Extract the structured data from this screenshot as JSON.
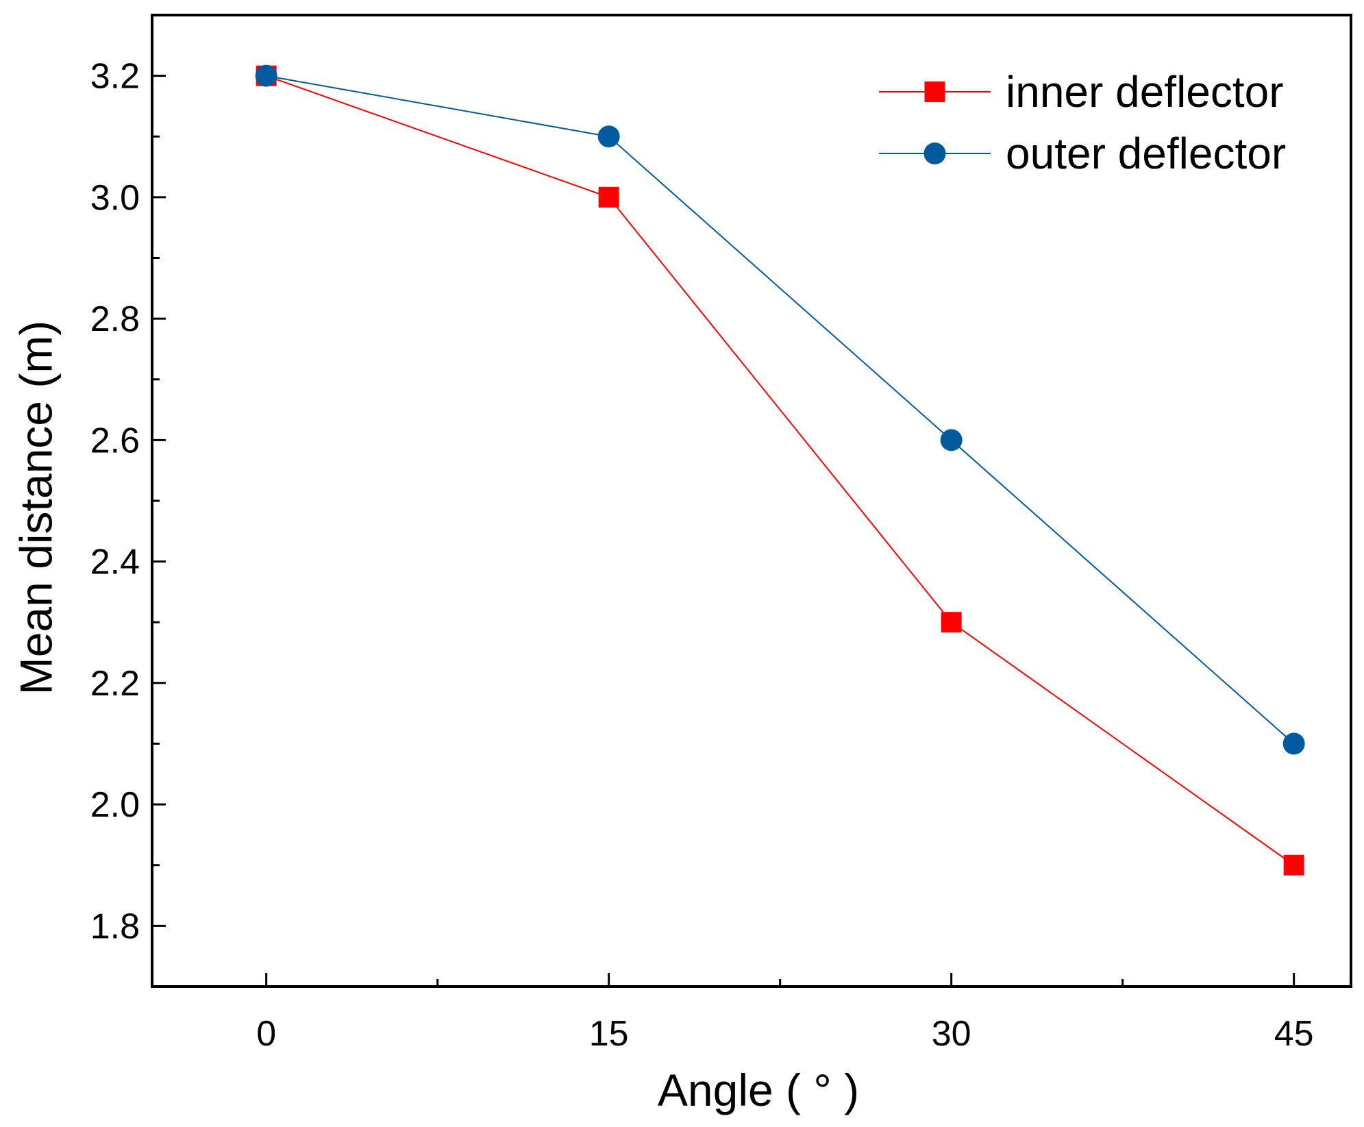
{
  "chart_data": {
    "type": "line",
    "xlabel": "Angle ( ° )",
    "ylabel": "Mean distance (m)",
    "xlim": [
      -5,
      47.5
    ],
    "ylim": [
      1.7,
      3.3
    ],
    "x_ticks": [
      0,
      15,
      30,
      45
    ],
    "x_minor_ticks": [
      7.5,
      22.5,
      37.5
    ],
    "y_ticks": [
      1.8,
      2.0,
      2.2,
      2.4,
      2.6,
      2.8,
      3.0,
      3.2
    ],
    "y_tick_labels": [
      "1.8",
      "2.0",
      "2.2",
      "2.4",
      "2.6",
      "2.8",
      "3.0",
      "3.2"
    ],
    "y_minor_ticks": [
      1.9,
      2.1,
      2.3,
      2.5,
      2.7,
      2.9,
      3.1
    ],
    "x": [
      0,
      15,
      30,
      45
    ],
    "series": [
      {
        "name": "inner deflector",
        "values": [
          3.2,
          3.0,
          2.3,
          1.9
        ],
        "color": "#ff0000",
        "marker": "square"
      },
      {
        "name": "outer deflector",
        "values": [
          3.2,
          3.1,
          2.6,
          2.1
        ],
        "color": "#005a9e",
        "marker": "circle"
      }
    ],
    "grid": false,
    "legend_position": "top-right"
  }
}
